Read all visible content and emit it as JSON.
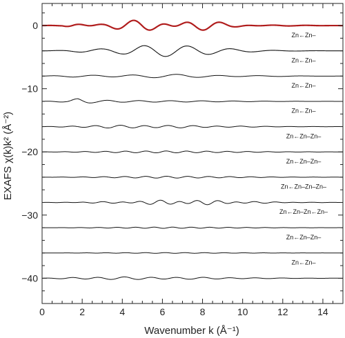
{
  "chart_data": {
    "type": "line",
    "xlabel": "Wavenumber k (Å⁻¹)",
    "ylabel": "EXAFS χ(k)k² (Å⁻²)",
    "xlim": [
      0,
      15
    ],
    "ylim": [
      -44,
      3.5
    ],
    "x_ticks": [
      0,
      2,
      4,
      6,
      8,
      10,
      12,
      14
    ],
    "y_ticks": [
      0,
      -10,
      -20,
      -30,
      -40
    ],
    "grid": false,
    "colors": {
      "top_series": "#b01c1c",
      "paths": "#111111",
      "frame": "#222222"
    },
    "series": [
      {
        "name": "",
        "offset": 0,
        "amp": 0.55,
        "color": "#b01c1c",
        "width": 2.2,
        "envelope": [
          [
            0,
            0
          ],
          [
            1.0,
            0.05
          ],
          [
            1.6,
            0.45
          ],
          [
            2.2,
            0.55
          ],
          [
            3.0,
            0.45
          ],
          [
            4.0,
            0.65
          ],
          [
            5.0,
            0.9
          ],
          [
            6.0,
            1.0
          ],
          [
            7.2,
            0.9
          ],
          [
            8.2,
            0.7
          ],
          [
            9.5,
            0.35
          ],
          [
            11,
            0.12
          ],
          [
            12.5,
            0.05
          ],
          [
            15,
            0.02
          ]
        ],
        "freq": 2.2,
        "phase": 0.5,
        "mod": 0.9
      },
      {
        "name": "Zn←Zn–",
        "offset": -4,
        "amp": 0.9,
        "color": "#111111",
        "width": 1.1,
        "envelope": [
          [
            0,
            0
          ],
          [
            1.0,
            0.08
          ],
          [
            2.0,
            0.25
          ],
          [
            3.0,
            0.35
          ],
          [
            4.0,
            0.55
          ],
          [
            5.0,
            0.9
          ],
          [
            6.0,
            1.0
          ],
          [
            7.0,
            0.9
          ],
          [
            8.0,
            0.7
          ],
          [
            9.0,
            0.45
          ],
          [
            10.0,
            0.25
          ],
          [
            11.0,
            0.12
          ],
          [
            12.5,
            0.04
          ],
          [
            15,
            0.0
          ]
        ],
        "freq": 1.45,
        "phase": -0.6,
        "mod": 0.0
      },
      {
        "name": "Zn←Zn–",
        "offset": -8,
        "amp": 0.22,
        "color": "#111111",
        "width": 1.0,
        "envelope": [
          [
            0,
            0
          ],
          [
            1.5,
            0.6
          ],
          [
            3,
            0.8
          ],
          [
            5,
            0.9
          ],
          [
            7,
            1.0
          ],
          [
            9,
            0.6
          ],
          [
            11,
            0.3
          ],
          [
            13,
            0.1
          ],
          [
            15,
            0.02
          ]
        ],
        "freq": 1.5,
        "phase": 0.4,
        "mod": 0.3
      },
      {
        "name": "Zn←Zn–",
        "offset": -12,
        "amp": 0.45,
        "color": "#111111",
        "width": 1.0,
        "envelope": [
          [
            0,
            0
          ],
          [
            1.2,
            0.3
          ],
          [
            1.8,
            1.0
          ],
          [
            2.6,
            0.45
          ],
          [
            4,
            0.3
          ],
          [
            6,
            0.25
          ],
          [
            8,
            0.2
          ],
          [
            10,
            0.12
          ],
          [
            12,
            0.05
          ],
          [
            15,
            0.0
          ]
        ],
        "freq": 2.0,
        "phase": 1.1,
        "mod": 0.0
      },
      {
        "name": "Zn←Zn–",
        "offset": -16,
        "amp": 0.2,
        "color": "#111111",
        "width": 1.0,
        "envelope": [
          [
            0,
            0
          ],
          [
            1.5,
            0.5
          ],
          [
            3,
            0.9
          ],
          [
            5,
            1.0
          ],
          [
            7,
            0.8
          ],
          [
            9,
            0.5
          ],
          [
            11,
            0.25
          ],
          [
            13,
            0.1
          ],
          [
            15,
            0.02
          ]
        ],
        "freq": 2.6,
        "phase": 0.2,
        "mod": 0.2
      },
      {
        "name": "Zn←Zn–Zn–",
        "offset": -20,
        "amp": 0.15,
        "color": "#111111",
        "width": 1.0,
        "envelope": [
          [
            0,
            0
          ],
          [
            2,
            0.4
          ],
          [
            4,
            0.8
          ],
          [
            6,
            1.0
          ],
          [
            8,
            0.8
          ],
          [
            10,
            0.5
          ],
          [
            12,
            0.2
          ],
          [
            15,
            0.05
          ]
        ],
        "freq": 3.1,
        "phase": 0.9,
        "mod": 0.0
      },
      {
        "name": "Zn←Zn–Zn–",
        "offset": -24,
        "amp": 0.15,
        "color": "#111111",
        "width": 1.0,
        "envelope": [
          [
            0,
            0
          ],
          [
            2,
            0.3
          ],
          [
            4,
            0.7
          ],
          [
            6,
            1.0
          ],
          [
            8,
            0.8
          ],
          [
            10,
            0.5
          ],
          [
            12,
            0.2
          ],
          [
            15,
            0.05
          ]
        ],
        "freq": 3.0,
        "phase": 2.0,
        "mod": 0.0
      },
      {
        "name": "Zn←Zn–Zn–Zn–",
        "offset": -28,
        "amp": 0.28,
        "color": "#111111",
        "width": 1.0,
        "envelope": [
          [
            0,
            0
          ],
          [
            2,
            0.2
          ],
          [
            4,
            0.4
          ],
          [
            6,
            0.9
          ],
          [
            7.5,
            1.0
          ],
          [
            9,
            0.7
          ],
          [
            11,
            0.3
          ],
          [
            13,
            0.1
          ],
          [
            15,
            0.02
          ]
        ],
        "freq": 3.3,
        "phase": 0.5,
        "mod": 0.5
      },
      {
        "name": "Zn←Zn–Zn←Zn–",
        "offset": -32,
        "amp": 0.1,
        "color": "#111111",
        "width": 1.0,
        "envelope": [
          [
            0,
            0
          ],
          [
            2,
            0.3
          ],
          [
            4,
            0.7
          ],
          [
            6,
            1.0
          ],
          [
            8,
            0.8
          ],
          [
            10,
            0.5
          ],
          [
            12,
            0.2
          ],
          [
            15,
            0.05
          ]
        ],
        "freq": 3.4,
        "phase": 1.3,
        "mod": 0.0
      },
      {
        "name": "Zn←Zn–Zn–",
        "offset": -36,
        "amp": 0.06,
        "color": "#111111",
        "width": 1.0,
        "envelope": [
          [
            0,
            0
          ],
          [
            2,
            0.3
          ],
          [
            4,
            0.7
          ],
          [
            6,
            1.0
          ],
          [
            8,
            0.8
          ],
          [
            10,
            0.5
          ],
          [
            12,
            0.2
          ],
          [
            15,
            0.05
          ]
        ],
        "freq": 3.2,
        "phase": 0.0,
        "mod": 0.0
      },
      {
        "name": "Zn←Zn–",
        "offset": -40,
        "amp": 0.18,
        "color": "#111111",
        "width": 1.0,
        "envelope": [
          [
            0,
            0
          ],
          [
            1.5,
            0.7
          ],
          [
            2.5,
            0.9
          ],
          [
            4,
            1.0
          ],
          [
            6,
            0.9
          ],
          [
            8,
            0.7
          ],
          [
            10,
            0.45
          ],
          [
            12,
            0.2
          ],
          [
            15,
            0.05
          ]
        ],
        "freq": 2.4,
        "phase": 0.7,
        "mod": 0.2
      }
    ]
  }
}
